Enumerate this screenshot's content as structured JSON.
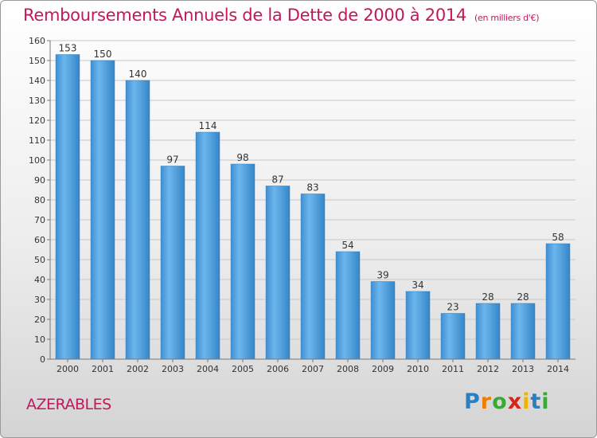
{
  "chart_data": {
    "type": "bar",
    "title": "Remboursements Annuels de la Dette de 2000 à 2014",
    "unit": "(en milliers d'€)",
    "categories": [
      "2000",
      "2001",
      "2002",
      "2003",
      "2004",
      "2005",
      "2006",
      "2007",
      "2008",
      "2009",
      "2010",
      "2011",
      "2012",
      "2013",
      "2014"
    ],
    "values": [
      153,
      150,
      140,
      97,
      114,
      98,
      87,
      83,
      54,
      39,
      34,
      23,
      28,
      28,
      58
    ],
    "ylim": [
      0,
      160
    ],
    "yticks": [
      0,
      10,
      20,
      30,
      40,
      50,
      60,
      70,
      80,
      90,
      100,
      110,
      120,
      130,
      140,
      150,
      160
    ],
    "grid": true,
    "bar_color": "#4a9ee0"
  },
  "location": "AZERABLES",
  "logo": {
    "text": "Proxiti",
    "letters": [
      "P",
      "r",
      "o",
      "x",
      "i",
      "t",
      "i"
    ],
    "colors": [
      "#2b7fc1",
      "#f07d00",
      "#3aa935",
      "#d9241b",
      "#f0b400",
      "#2b7fc1",
      "#3aa935"
    ]
  }
}
